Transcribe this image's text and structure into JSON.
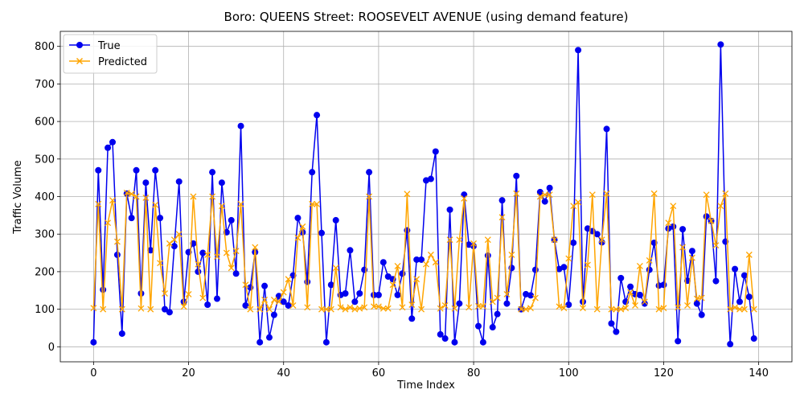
{
  "chart_data": {
    "type": "line",
    "title": "Boro: QUEENS Street: ROOSEVELT AVENUE (using demand feature)",
    "xlabel": "Time Index",
    "ylabel": "Traffic Volume",
    "xlim": [
      -7,
      147
    ],
    "ylim": [
      -40,
      840
    ],
    "xticks": [
      0,
      20,
      40,
      60,
      80,
      100,
      120,
      140
    ],
    "yticks": [
      0,
      100,
      200,
      300,
      400,
      500,
      600,
      700,
      800
    ],
    "grid": true,
    "legend_position": "top-left",
    "series": [
      {
        "name": "True",
        "color": "#0000ee",
        "marker": "circle",
        "values": [
          12,
          470,
          152,
          530,
          545,
          245,
          35,
          408,
          343,
          470,
          142,
          437,
          257,
          470,
          343,
          100,
          92,
          268,
          440,
          120,
          252,
          275,
          200,
          250,
          112,
          465,
          128,
          437,
          305,
          337,
          195,
          588,
          110,
          158,
          252,
          12,
          162,
          25,
          85,
          135,
          120,
          110,
          190,
          343,
          305,
          173,
          465,
          617,
          303,
          12,
          165,
          337,
          138,
          142,
          257,
          120,
          142,
          205,
          465,
          138,
          138,
          225,
          187,
          180,
          138,
          195,
          310,
          75,
          232,
          232,
          443,
          447,
          520,
          33,
          22,
          365,
          12,
          115,
          405,
          272,
          268,
          55,
          12,
          243,
          52,
          87,
          390,
          115,
          210,
          455,
          100,
          140,
          137,
          205,
          412,
          387,
          423,
          285,
          207,
          212,
          112,
          277,
          790,
          120,
          315,
          308,
          300,
          278,
          580,
          62,
          40,
          183,
          120,
          160,
          140,
          138,
          115,
          205,
          277,
          163,
          165,
          315,
          320,
          15,
          313,
          176,
          255,
          115,
          85,
          347,
          335,
          175,
          805,
          280,
          7,
          207,
          120,
          190,
          133,
          22
        ]
      },
      {
        "name": "Predicted",
        "color": "#ffa500",
        "marker": "x",
        "values": [
          103,
          380,
          100,
          330,
          390,
          280,
          100,
          410,
          407,
          400,
          102,
          397,
          100,
          378,
          223,
          142,
          275,
          285,
          300,
          107,
          140,
          400,
          220,
          130,
          245,
          400,
          240,
          375,
          250,
          210,
          255,
          380,
          165,
          100,
          265,
          100,
          125,
          100,
          125,
          120,
          145,
          180,
          110,
          290,
          320,
          105,
          380,
          380,
          100,
          100,
          100,
          210,
          105,
          100,
          105,
          100,
          102,
          105,
          400,
          107,
          107,
          102,
          102,
          165,
          215,
          105,
          407,
          112,
          180,
          100,
          220,
          245,
          225,
          102,
          110,
          285,
          102,
          285,
          395,
          105,
          275,
          108,
          108,
          285,
          120,
          130,
          345,
          140,
          245,
          408,
          100,
          100,
          103,
          130,
          400,
          405,
          405,
          285,
          107,
          103,
          235,
          375,
          385,
          103,
          218,
          405,
          100,
          285,
          408,
          100,
          100,
          100,
          103,
          145,
          110,
          215,
          120,
          230,
          408,
          100,
          103,
          330,
          375,
          105,
          265,
          110,
          237,
          128,
          130,
          405,
          335,
          270,
          375,
          408,
          100,
          105,
          100,
          100,
          245,
          100
        ]
      }
    ]
  }
}
